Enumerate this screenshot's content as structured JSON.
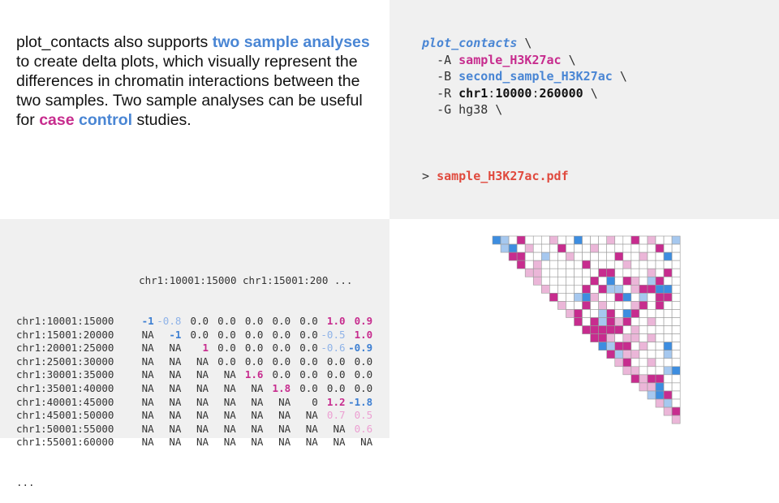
{
  "description": {
    "t1": "plot_contacts also supports ",
    "t2": "two sample analyses",
    "t3": " to create delta plots, which visually represent the differences in chromatin interactions between the two samples. Two sample analyses can be useful for ",
    "t4": "case",
    "t5": " ",
    "t6": "control",
    "t7": " studies."
  },
  "command": {
    "name": "plot_contacts",
    "cont": " \\",
    "flag_a": "-A",
    "value_a": "sample_H3K27ac",
    "flag_b": "-B",
    "value_b": "second_sample_H3K27ac",
    "flag_r": "-R",
    "region_chr": "chr1",
    "region_colon1": ":",
    "region_start": "10000",
    "region_colon2": ":",
    "region_end": "260000",
    "flag_g": "-G",
    "value_g": "hg38",
    "prompt": ">",
    "output": "sample_H3K27ac.pdf"
  },
  "matrix": {
    "header": "chr1:10001:15000 chr1:15001:200 ...",
    "ellipsis": "...",
    "rows": [
      {
        "label": "chr1:10001:15000",
        "cells": [
          "-1",
          "-0.8",
          "0.0",
          "0.0",
          "0.0",
          "0.0",
          "0.0",
          "1.0",
          "0.9"
        ],
        "styles": [
          "blue",
          "lblue",
          "",
          "",
          "",
          "",
          "",
          "pink",
          "pink"
        ]
      },
      {
        "label": "chr1:15001:20000",
        "cells": [
          "NA",
          "-1",
          "0.0",
          "0.0",
          "0.0",
          "0.0",
          "0.0",
          "-0.5",
          "1.0"
        ],
        "styles": [
          "",
          "blue",
          "",
          "",
          "",
          "",
          "",
          "lblue",
          "pink"
        ]
      },
      {
        "label": "chr1:20001:25000",
        "cells": [
          "NA",
          "NA",
          "1",
          "0.0",
          "0.0",
          "0.0",
          "0.0",
          "-0.6",
          "-0.9"
        ],
        "styles": [
          "",
          "",
          "pink",
          "",
          "",
          "",
          "",
          "lblue",
          "blue"
        ]
      },
      {
        "label": "chr1:25001:30000",
        "cells": [
          "NA",
          "NA",
          "NA",
          "0.0",
          "0.0",
          "0.0",
          "0.0",
          "0.0",
          "0.0"
        ],
        "styles": [
          "",
          "",
          "",
          "",
          "",
          "",
          "",
          "",
          ""
        ]
      },
      {
        "label": "chr1:30001:35000",
        "cells": [
          "NA",
          "NA",
          "NA",
          "NA",
          "1.6",
          "0.0",
          "0.0",
          "0.0",
          "0.0"
        ],
        "styles": [
          "",
          "",
          "",
          "",
          "pink",
          "",
          "",
          "",
          ""
        ]
      },
      {
        "label": "chr1:35001:40000",
        "cells": [
          "NA",
          "NA",
          "NA",
          "NA",
          "NA",
          "1.8",
          "0.0",
          "0.0",
          "0.0"
        ],
        "styles": [
          "",
          "",
          "",
          "",
          "",
          "pink",
          "",
          "",
          ""
        ]
      },
      {
        "label": "chr1:40001:45000",
        "cells": [
          "NA",
          "NA",
          "NA",
          "NA",
          "NA",
          "NA",
          "0",
          "1.2",
          "-1.8"
        ],
        "styles": [
          "",
          "",
          "",
          "",
          "",
          "",
          "",
          "pink",
          "blue"
        ]
      },
      {
        "label": "chr1:45001:50000",
        "cells": [
          "NA",
          "NA",
          "NA",
          "NA",
          "NA",
          "NA",
          "NA",
          "0.7",
          "0.5"
        ],
        "styles": [
          "",
          "",
          "",
          "",
          "",
          "",
          "",
          "lpink",
          "lpink"
        ]
      },
      {
        "label": "chr1:50001:55000",
        "cells": [
          "NA",
          "NA",
          "NA",
          "NA",
          "NA",
          "NA",
          "NA",
          "NA",
          "0.6"
        ],
        "styles": [
          "",
          "",
          "",
          "",
          "",
          "",
          "",
          "",
          "lpink"
        ]
      },
      {
        "label": "chr1:55001:60000",
        "cells": [
          "NA",
          "NA",
          "NA",
          "NA",
          "NA",
          "NA",
          "NA",
          "NA",
          "NA"
        ],
        "styles": [
          "",
          "",
          "",
          "",
          "",
          "",
          "",
          "",
          ""
        ]
      }
    ]
  },
  "heatmap": {
    "size": 23,
    "colors": {
      "strong_pink": "#c72c8e",
      "light_pink": "#ebb6d8",
      "strong_blue": "#3d8de0",
      "light_blue": "#a6c8ef",
      "empty": "#ffffff",
      "grid": "#999999"
    },
    "cells": [
      [
        0,
        0,
        "b"
      ],
      [
        0,
        1,
        "lb"
      ],
      [
        0,
        3,
        "p"
      ],
      [
        0,
        7,
        "lp"
      ],
      [
        0,
        10,
        "b"
      ],
      [
        0,
        14,
        "lp"
      ],
      [
        0,
        17,
        "p"
      ],
      [
        0,
        19,
        "lp"
      ],
      [
        0,
        22,
        "lb"
      ],
      [
        1,
        1,
        "lb"
      ],
      [
        1,
        2,
        "b"
      ],
      [
        1,
        4,
        "lp"
      ],
      [
        1,
        8,
        "p"
      ],
      [
        1,
        12,
        "lp"
      ],
      [
        1,
        20,
        "p"
      ],
      [
        2,
        2,
        "p"
      ],
      [
        2,
        3,
        "p"
      ],
      [
        2,
        6,
        "lb"
      ],
      [
        2,
        9,
        "lp"
      ],
      [
        2,
        15,
        "p"
      ],
      [
        2,
        18,
        "lp"
      ],
      [
        2,
        21,
        "b"
      ],
      [
        3,
        3,
        "p"
      ],
      [
        3,
        5,
        "lp"
      ],
      [
        3,
        11,
        "p"
      ],
      [
        3,
        16,
        "lp"
      ],
      [
        4,
        4,
        "lp"
      ],
      [
        4,
        5,
        "lp"
      ],
      [
        4,
        13,
        "p"
      ],
      [
        4,
        14,
        "p"
      ],
      [
        4,
        19,
        "lp"
      ],
      [
        4,
        21,
        "p"
      ],
      [
        5,
        5,
        "lp"
      ],
      [
        5,
        12,
        "p"
      ],
      [
        5,
        14,
        "b"
      ],
      [
        5,
        16,
        "p"
      ],
      [
        5,
        17,
        "lp"
      ],
      [
        5,
        19,
        "lb"
      ],
      [
        5,
        20,
        "p"
      ],
      [
        6,
        6,
        "lp"
      ],
      [
        6,
        11,
        "p"
      ],
      [
        6,
        13,
        "p"
      ],
      [
        6,
        14,
        "lb"
      ],
      [
        6,
        15,
        "lb"
      ],
      [
        6,
        17,
        "lp"
      ],
      [
        6,
        18,
        "p"
      ],
      [
        6,
        19,
        "p"
      ],
      [
        6,
        20,
        "b"
      ],
      [
        6,
        21,
        "b"
      ],
      [
        7,
        7,
        "p"
      ],
      [
        7,
        10,
        "lb"
      ],
      [
        7,
        11,
        "b"
      ],
      [
        7,
        12,
        "lp"
      ],
      [
        7,
        15,
        "p"
      ],
      [
        7,
        16,
        "b"
      ],
      [
        7,
        18,
        "lb"
      ],
      [
        7,
        20,
        "p"
      ],
      [
        7,
        21,
        "p"
      ],
      [
        8,
        8,
        "lp"
      ],
      [
        8,
        11,
        "p"
      ],
      [
        8,
        13,
        "lp"
      ],
      [
        8,
        17,
        "lp"
      ],
      [
        8,
        18,
        "p"
      ],
      [
        8,
        20,
        "p"
      ],
      [
        9,
        9,
        "lp"
      ],
      [
        9,
        10,
        "p"
      ],
      [
        9,
        13,
        "lb"
      ],
      [
        9,
        14,
        "p"
      ],
      [
        9,
        16,
        "b"
      ],
      [
        9,
        17,
        "p"
      ],
      [
        10,
        10,
        "p"
      ],
      [
        10,
        12,
        "p"
      ],
      [
        10,
        13,
        "lb"
      ],
      [
        10,
        14,
        "p"
      ],
      [
        10,
        15,
        "lp"
      ],
      [
        10,
        16,
        "p"
      ],
      [
        10,
        19,
        "lp"
      ],
      [
        11,
        11,
        "p"
      ],
      [
        11,
        12,
        "p"
      ],
      [
        11,
        13,
        "p"
      ],
      [
        11,
        14,
        "p"
      ],
      [
        11,
        15,
        "p"
      ],
      [
        11,
        17,
        "lp"
      ],
      [
        12,
        12,
        "p"
      ],
      [
        12,
        13,
        "p"
      ],
      [
        12,
        14,
        "lp"
      ],
      [
        12,
        16,
        "lp"
      ],
      [
        12,
        17,
        "lp"
      ],
      [
        12,
        19,
        "lp"
      ],
      [
        13,
        13,
        "b"
      ],
      [
        13,
        14,
        "lb"
      ],
      [
        13,
        15,
        "p"
      ],
      [
        13,
        16,
        "p"
      ],
      [
        13,
        18,
        "lp"
      ],
      [
        13,
        21,
        "b"
      ],
      [
        14,
        14,
        "p"
      ],
      [
        14,
        15,
        "lb"
      ],
      [
        14,
        16,
        "lp"
      ],
      [
        14,
        17,
        "lp"
      ],
      [
        14,
        21,
        "lb"
      ],
      [
        15,
        15,
        "lp"
      ],
      [
        15,
        16,
        "p"
      ],
      [
        15,
        19,
        "lp"
      ],
      [
        16,
        16,
        "lp"
      ],
      [
        16,
        17,
        "lp"
      ],
      [
        16,
        21,
        "lb"
      ],
      [
        16,
        22,
        "b"
      ],
      [
        17,
        17,
        "p"
      ],
      [
        17,
        18,
        "lp"
      ],
      [
        17,
        19,
        "p"
      ],
      [
        17,
        20,
        "p"
      ],
      [
        18,
        18,
        "lp"
      ],
      [
        18,
        19,
        "lp"
      ],
      [
        18,
        20,
        "b"
      ],
      [
        19,
        19,
        "lb"
      ],
      [
        19,
        20,
        "b"
      ],
      [
        19,
        21,
        "p"
      ],
      [
        20,
        20,
        "lp"
      ],
      [
        20,
        21,
        "lb"
      ],
      [
        21,
        21,
        "lp"
      ],
      [
        21,
        22,
        "p"
      ],
      [
        22,
        22,
        "lp"
      ]
    ]
  }
}
